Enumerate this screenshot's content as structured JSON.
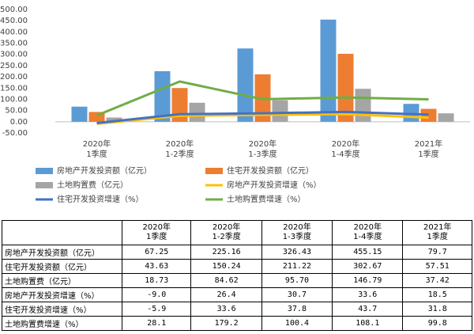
{
  "chart_data": {
    "type": "bar-line",
    "categories": [
      [
        "2020年",
        "1季度"
      ],
      [
        "2020年",
        "1-2季度"
      ],
      [
        "2020年",
        "1-3季度"
      ],
      [
        "2020年",
        "1-4季度"
      ],
      [
        "2021年",
        "1季度"
      ]
    ],
    "series": [
      {
        "name": "房地产开发投资额（亿元）",
        "color": "#5b9bd5",
        "kind": "bar",
        "values": [
          67.25,
          225.16,
          326.43,
          455.15,
          79.7
        ]
      },
      {
        "name": "住宅开发投资额（亿元）",
        "color": "#ed7d31",
        "kind": "bar",
        "values": [
          43.63,
          150.24,
          211.22,
          302.67,
          57.51
        ]
      },
      {
        "name": "土地购置费（亿元）",
        "color": "#a5a5a5",
        "kind": "bar",
        "values": [
          18.73,
          84.62,
          95.7,
          146.79,
          37.42
        ]
      },
      {
        "name": "房地产开发投资增速（%）",
        "color": "#ffc000",
        "kind": "line",
        "values": [
          -9.0,
          26.4,
          30.7,
          33.6,
          18.5
        ]
      },
      {
        "name": "住宅开发投资增速（%）",
        "color": "#4472c4",
        "kind": "line",
        "values": [
          -5.9,
          33.6,
          37.8,
          43.7,
          31.8
        ]
      },
      {
        "name": "土地购置费增速（%）",
        "color": "#70ad47",
        "kind": "line",
        "values": [
          28.1,
          179.2,
          100.4,
          108.1,
          99.8
        ]
      }
    ],
    "ylim": [
      -50,
      500
    ],
    "yticks": [
      {
        "value": -50,
        "label": "-50.00"
      },
      {
        "value": 0,
        "label": "0.00"
      },
      {
        "value": 50,
        "label": "50.00"
      },
      {
        "value": 100,
        "label": "100.00"
      },
      {
        "value": 150,
        "label": "150.00"
      },
      {
        "value": 200,
        "label": "200.00"
      },
      {
        "value": 250,
        "label": "250.00"
      },
      {
        "value": 300,
        "label": "300.00"
      },
      {
        "value": 350,
        "label": "350.00"
      },
      {
        "value": 400,
        "label": "400.00"
      },
      {
        "value": 450,
        "label": "450.00"
      },
      {
        "value": 500,
        "label": "500.00"
      }
    ],
    "grid": false
  },
  "table": {
    "columns": [
      [
        "2020年",
        "1季度"
      ],
      [
        "2020年",
        "1-2季度"
      ],
      [
        "2020年",
        "1-3季度"
      ],
      [
        "2020年",
        "1-4季度"
      ],
      [
        "2021年",
        "1季度"
      ]
    ],
    "rows": [
      {
        "label": "房地产开发投资额（亿元）",
        "cells": [
          "67.25",
          "225.16",
          "326.43",
          "455.15",
          "79.7"
        ]
      },
      {
        "label": "住宅开发投资额（亿元）",
        "cells": [
          "43.63",
          "150.24",
          "211.22",
          "302.67",
          "57.51"
        ]
      },
      {
        "label": "土地购置费（亿元）",
        "cells": [
          "18.73",
          "84.62",
          "95.70",
          "146.79",
          "37.42"
        ]
      },
      {
        "label": "房地产开发投资增速（%）",
        "cells": [
          "-9.0",
          "26.4",
          "30.7",
          "33.6",
          "18.5"
        ]
      },
      {
        "label": "住宅开发投资增速（%）",
        "cells": [
          "-5.9",
          "33.6",
          "37.8",
          "43.7",
          "31.8"
        ]
      },
      {
        "label": "土地购置费增速（%）",
        "cells": [
          "28.1",
          "179.2",
          "100.4",
          "108.1",
          "99.8"
        ]
      }
    ]
  }
}
